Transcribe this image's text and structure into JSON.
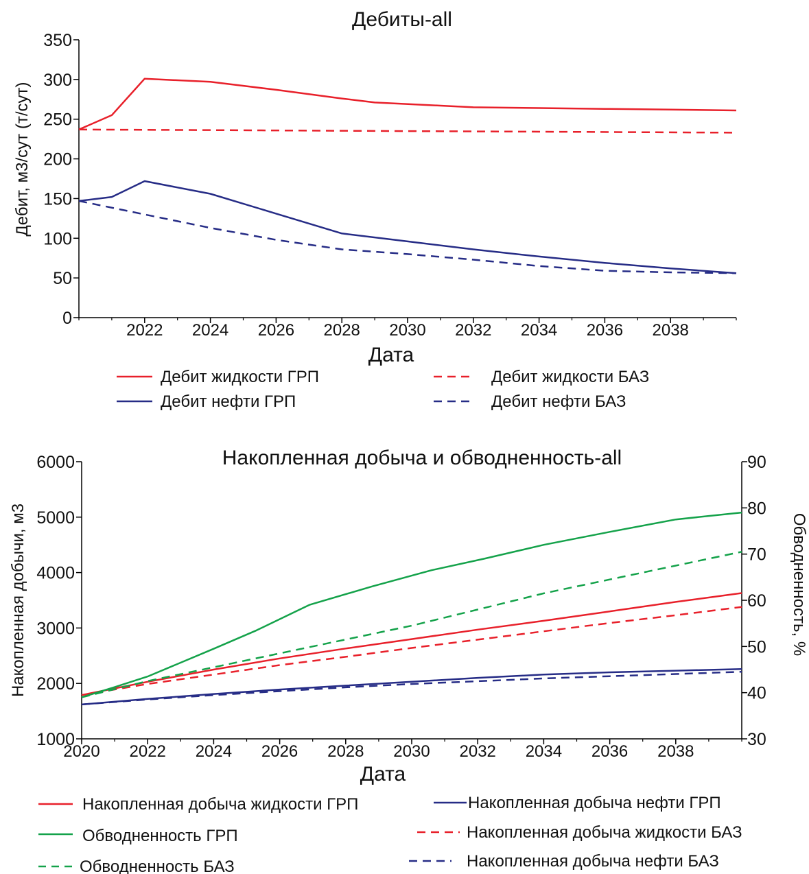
{
  "chart_data": [
    {
      "type": "line",
      "title": "Дебиты-all",
      "xlabel": "Дата",
      "ylabel": "Дебит, м3/сут (т/сут)",
      "xlim": [
        2020,
        2040
      ],
      "ylim": [
        0,
        350
      ],
      "x_ticks": [
        "2022",
        "2024",
        "2026",
        "2028",
        "2030",
        "2032",
        "2034",
        "2036",
        "2038"
      ],
      "y_ticks": [
        "0",
        "50",
        "100",
        "150",
        "200",
        "250",
        "300",
        "350"
      ],
      "grid": false,
      "legend_position": "bottom",
      "series": [
        {
          "name": "Дебит жидкости ГРП",
          "color": "#e8202a",
          "dash": "solid",
          "x": [
            2020,
            2021,
            2022,
            2024,
            2026,
            2028,
            2029,
            2031,
            2032,
            2034,
            2036,
            2038,
            2040
          ],
          "y": [
            237,
            255,
            301,
            297,
            287,
            276,
            271,
            267,
            265,
            264,
            263,
            262,
            261
          ]
        },
        {
          "name": "Дебит жидкости БАЗ",
          "color": "#e8202a",
          "dash": "dashed",
          "x": [
            2020,
            2025,
            2030,
            2035,
            2040
          ],
          "y": [
            237,
            236,
            235,
            234,
            233
          ]
        },
        {
          "name": "Дебит нефти ГРП",
          "color": "#262c86",
          "dash": "solid",
          "x": [
            2020,
            2021,
            2022,
            2023.5,
            2024,
            2026,
            2028,
            2030,
            2032,
            2034,
            2036,
            2038,
            2040
          ],
          "y": [
            147,
            152,
            172,
            160,
            156,
            131,
            106,
            96,
            86,
            77,
            69,
            62,
            56
          ]
        },
        {
          "name": "Дебит нефти БАЗ",
          "color": "#262c86",
          "dash": "dashed",
          "x": [
            2020,
            2022,
            2024,
            2026,
            2028,
            2030,
            2032,
            2034,
            2036,
            2038,
            2040
          ],
          "y": [
            147,
            130,
            113,
            98,
            86,
            80,
            73,
            65,
            59,
            57,
            56
          ]
        }
      ]
    },
    {
      "type": "line",
      "title": "Накопленная добыча и обводненность-all",
      "xlabel": "Дата",
      "ylabel": "Накопленная добычи, м3",
      "ylabel_right": "Обводненность, %",
      "xlim": [
        2020,
        2040
      ],
      "ylim": [
        1000,
        6000
      ],
      "ylim_right": [
        30,
        90
      ],
      "x_ticks": [
        "2020",
        "2022",
        "2024",
        "2026",
        "2028",
        "2030",
        "2032",
        "2034",
        "2036",
        "2038"
      ],
      "y_ticks": [
        "1000",
        "2000",
        "3000",
        "4000",
        "5000",
        "6000"
      ],
      "y_ticks_right": [
        "30",
        "40",
        "50",
        "60",
        "70",
        "80",
        "90"
      ],
      "grid": false,
      "legend_position": "bottom",
      "series": [
        {
          "name": "Накопленная добыча жидкости ГРП",
          "color": "#e8202a",
          "dash": "solid",
          "axis": "left",
          "x": [
            2020,
            2022,
            2024,
            2026,
            2028,
            2030,
            2032,
            2034,
            2036,
            2038,
            2040
          ],
          "y": [
            1790,
            2030,
            2250,
            2450,
            2630,
            2800,
            2970,
            3130,
            3300,
            3470,
            3630
          ]
        },
        {
          "name": "Накопленная добыча нефти ГРП",
          "color": "#262c86",
          "dash": "solid",
          "axis": "left",
          "x": [
            2020,
            2022,
            2024,
            2026,
            2028,
            2030,
            2032,
            2034,
            2036,
            2038,
            2040
          ],
          "y": [
            1620,
            1720,
            1810,
            1890,
            1960,
            2030,
            2100,
            2160,
            2200,
            2230,
            2260
          ]
        },
        {
          "name": "Накопленная добыча жидкости БАЗ",
          "color": "#e8202a",
          "dash": "dashed",
          "axis": "left",
          "x": [
            2020,
            2022,
            2024,
            2026,
            2028,
            2030,
            2032,
            2034,
            2036,
            2038,
            2040
          ],
          "y": [
            1790,
            1990,
            2160,
            2330,
            2480,
            2640,
            2790,
            2940,
            3090,
            3230,
            3380
          ]
        },
        {
          "name": "Накопленная добыча нефти БАЗ",
          "color": "#262c86",
          "dash": "dashed",
          "axis": "left",
          "x": [
            2020,
            2022,
            2024,
            2026,
            2028,
            2030,
            2032,
            2034,
            2036,
            2038,
            2040
          ],
          "y": [
            1620,
            1710,
            1790,
            1860,
            1930,
            1990,
            2040,
            2090,
            2130,
            2170,
            2210
          ]
        },
        {
          "name": "Обводненность ГРП",
          "color": "#14a24a",
          "dash": "solid",
          "axis": "right",
          "x": [
            2020,
            2021,
            2022,
            2024,
            2025.3,
            2026.9,
            2028.8,
            2030.6,
            2032.2,
            2034,
            2036,
            2038,
            2040
          ],
          "y": [
            39,
            41.2,
            43.5,
            49.5,
            53.5,
            59,
            63,
            66.5,
            69,
            72,
            74.8,
            77.5,
            79
          ]
        },
        {
          "name": "Обводненность БАЗ",
          "color": "#14a24a",
          "dash": "dashed",
          "axis": "right",
          "x": [
            2020,
            2022,
            2024,
            2026,
            2028,
            2030,
            2032,
            2034,
            2036,
            2038,
            2040
          ],
          "y": [
            39,
            42.5,
            45.5,
            48.5,
            51.5,
            54.5,
            58,
            61.5,
            64.5,
            67.5,
            70.5
          ]
        }
      ]
    }
  ],
  "legends": [
    [
      "Дебит жидкости ГРП",
      "Дебит жидкости БАЗ",
      "Дебит нефти ГРП",
      "Дебит нефти БАЗ"
    ],
    [
      "Накопленная добыча жидкости ГРП",
      "Накопленная добыча нефти ГРП",
      "Обводненность ГРП",
      "Накопленная добыча жидкости БАЗ",
      "Обводненность БАЗ",
      "Накопленная добыча нефти БАЗ"
    ]
  ]
}
